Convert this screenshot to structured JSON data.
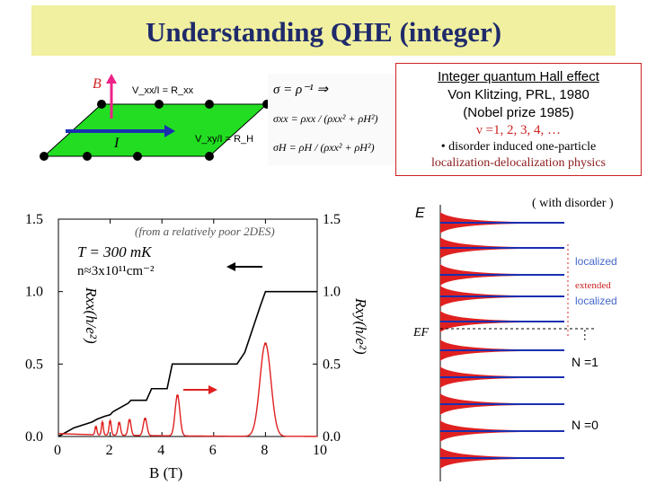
{
  "title": "Understanding QHE (integer)",
  "colors": {
    "title_bg": "#f0f0a0",
    "title_text": "#1f2a6b",
    "red": "#e02020",
    "blue": "#1a2fb0",
    "green": "#22dd22",
    "magenta": "#ee2288"
  },
  "hall_bar": {
    "b_label": "B",
    "i_label": "I",
    "rxx_label": "V_xx/I = R_xx",
    "rxy_label": "V_xy/I = R_H"
  },
  "formulas": [
    "σ = ρ⁻¹ ⇒",
    "σxx = ρxx / (ρxx² + ρH²)",
    "σH = ρH / (ρxx² + ρH²)"
  ],
  "info": {
    "heading": "Integer quantum Hall effect",
    "citation": "Von Klitzing, PRL, 1980",
    "prize": "(Nobel prize 1985)",
    "nu": "ν =1, 2, 3, 4, …",
    "disorder_bullet": "• disorder induced one-particle",
    "disorder_line2": "localization-delocalization physics"
  },
  "chart_data": {
    "type": "line",
    "note": "(from a relatively poor 2DES)",
    "temperature": "T = 300 mK",
    "density": "n≈3x10¹¹cm⁻²",
    "xlabel": "B (T)",
    "ylabel_left": "Rxx(h/e²)",
    "ylabel_right": "Rxy(h/e²)",
    "xlim": [
      0,
      10
    ],
    "ylim": [
      0,
      1.5
    ],
    "x_ticks": [
      "0",
      "2",
      "4",
      "6",
      "8",
      "10"
    ],
    "y_ticks_left": [
      "0.0",
      "0.5",
      "1.0",
      "1.5"
    ],
    "y_ticks_right": [
      "0.0",
      "0.5",
      "1.0",
      "1.5"
    ],
    "series": [
      {
        "name": "Rxy (Hall)",
        "color": "#000000",
        "x": [
          0,
          0.6,
          1.3,
          1.5,
          1.8,
          2.0,
          2.1,
          2.4,
          2.7,
          2.8,
          3.4,
          3.6,
          4.2,
          4.4,
          4.8,
          6.9,
          7.2,
          7.8,
          8.0,
          8.3,
          10.0
        ],
        "y": [
          0,
          0.06,
          0.1,
          0.12,
          0.14,
          0.15,
          0.17,
          0.2,
          0.23,
          0.25,
          0.25,
          0.33,
          0.33,
          0.5,
          0.5,
          0.5,
          0.58,
          0.9,
          1.0,
          1.0,
          1.0
        ]
      },
      {
        "name": "Rxx",
        "color": "#e02020",
        "peaks": [
          {
            "b": 1.45,
            "h": 0.06,
            "w": 0.05
          },
          {
            "b": 1.7,
            "h": 0.09,
            "w": 0.05
          },
          {
            "b": 2.0,
            "h": 0.1,
            "w": 0.06
          },
          {
            "b": 2.35,
            "h": 0.09,
            "w": 0.07
          },
          {
            "b": 2.75,
            "h": 0.11,
            "w": 0.08
          },
          {
            "b": 3.35,
            "h": 0.12,
            "w": 0.1
          },
          {
            "b": 4.6,
            "h": 0.28,
            "w": 0.13
          },
          {
            "b": 8.0,
            "h": 0.64,
            "w": 0.3
          }
        ]
      }
    ],
    "arrows": [
      "Rxy (left)",
      "Rxx (right)"
    ]
  },
  "dos": {
    "e_label": "E",
    "ef_label": "EF",
    "with_disorder": "( with disorder )",
    "localized_upper": "localized",
    "extended": "extended",
    "localized_lower": "localized",
    "dots": "…",
    "n1": "N =1",
    "n0": "N =0"
  }
}
